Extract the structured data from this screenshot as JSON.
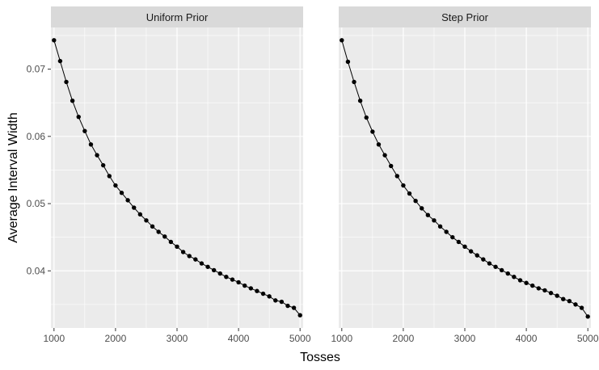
{
  "chart_data": {
    "type": "line",
    "xlabel": "Tosses",
    "ylabel": "Average Interval Width",
    "xlim": [
      950,
      5050
    ],
    "ylim": [
      0.0315,
      0.0762
    ],
    "x_ticks": [
      1000,
      2000,
      3000,
      4000,
      5000
    ],
    "x_tick_labels": [
      "1000",
      "2000",
      "3000",
      "4000",
      "5000"
    ],
    "y_ticks": [
      0.04,
      0.05,
      0.06,
      0.07
    ],
    "y_tick_labels": [
      "0.04",
      "0.05",
      "0.06",
      "0.07"
    ],
    "grid": true,
    "colors": {
      "panel": "#ebebeb",
      "strip": "#d9d9d9",
      "grid": "#ffffff",
      "line": "#000000"
    },
    "x": [
      1000,
      1100,
      1200,
      1300,
      1400,
      1500,
      1600,
      1700,
      1800,
      1900,
      2000,
      2100,
      2200,
      2300,
      2400,
      2500,
      2600,
      2700,
      2800,
      2900,
      3000,
      3100,
      3200,
      3300,
      3400,
      3500,
      3600,
      3700,
      3800,
      3900,
      4000,
      4100,
      4200,
      4300,
      4400,
      4500,
      4600,
      4700,
      4800,
      4900,
      5000
    ],
    "facets": [
      {
        "label": "Uniform Prior",
        "values": [
          0.0743,
          0.0712,
          0.0681,
          0.0653,
          0.0629,
          0.0608,
          0.0588,
          0.0572,
          0.0557,
          0.0541,
          0.0527,
          0.0516,
          0.0505,
          0.0494,
          0.0484,
          0.0475,
          0.0466,
          0.0458,
          0.0451,
          0.0443,
          0.0436,
          0.0428,
          0.0422,
          0.0417,
          0.0411,
          0.0406,
          0.0401,
          0.0396,
          0.0391,
          0.0387,
          0.0383,
          0.0378,
          0.0374,
          0.037,
          0.0366,
          0.0362,
          0.0356,
          0.0354,
          0.0348,
          0.0345,
          0.0334
        ]
      },
      {
        "label": "Step Prior",
        "values": [
          0.0743,
          0.0711,
          0.0681,
          0.0653,
          0.0628,
          0.0607,
          0.0588,
          0.0572,
          0.0556,
          0.0541,
          0.0527,
          0.0515,
          0.0504,
          0.0493,
          0.0483,
          0.0475,
          0.0466,
          0.0458,
          0.045,
          0.0443,
          0.0436,
          0.0429,
          0.0423,
          0.0417,
          0.0411,
          0.0406,
          0.0401,
          0.0396,
          0.0391,
          0.0386,
          0.0382,
          0.0378,
          0.0374,
          0.0371,
          0.0367,
          0.0363,
          0.0358,
          0.0355,
          0.035,
          0.0345,
          0.0332
        ]
      }
    ]
  }
}
